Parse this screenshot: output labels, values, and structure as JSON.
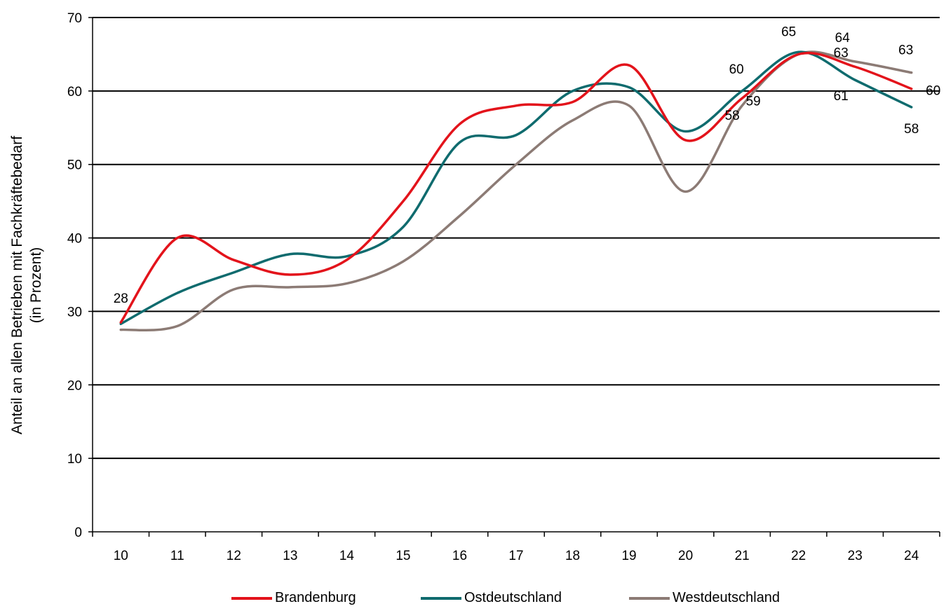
{
  "chart_data": {
    "type": "line",
    "title": "",
    "xlabel": "",
    "ylabel": "Anteil an allen Betrieben mit Fachkräftebedarf",
    "ylabel_line2": "(in Prozent)",
    "categories": [
      "10",
      "11",
      "12",
      "13",
      "14",
      "15",
      "16",
      "17",
      "18",
      "19",
      "20",
      "21",
      "22",
      "23",
      "24"
    ],
    "ylim": [
      0,
      70
    ],
    "yticks": [
      "0",
      "10",
      "20",
      "30",
      "40",
      "50",
      "60",
      "70"
    ],
    "grid": true,
    "legend_position": "bottom",
    "series": [
      {
        "name": "Brandenburg",
        "color": "#e3131b",
        "values": [
          28.5,
          40,
          37,
          35,
          37,
          45,
          55.5,
          58,
          58.5,
          63.5,
          53.3,
          59,
          65,
          63.3,
          60.3
        ]
      },
      {
        "name": "Ostdeutschland",
        "color": "#0f6b6e",
        "values": [
          28.3,
          32.5,
          35.3,
          37.8,
          37.5,
          41.5,
          53,
          54,
          60,
          60.5,
          54.5,
          60,
          65.3,
          61.5,
          57.8
        ]
      },
      {
        "name": "Westdeutschland",
        "color": "#8c7b75",
        "values": [
          27.5,
          28,
          33,
          33.3,
          33.8,
          36.8,
          43,
          50,
          56,
          58,
          46.3,
          58,
          65,
          64,
          62.5
        ]
      }
    ],
    "data_labels": [
      {
        "text": "28",
        "series": 0,
        "index": 0
      },
      {
        "text": "60",
        "series": 1,
        "index": 11
      },
      {
        "text": "59",
        "series": 0,
        "index": 11
      },
      {
        "text": "58",
        "series": 2,
        "index": 11
      },
      {
        "text": "65",
        "series": 1,
        "index": 12
      },
      {
        "text": "64",
        "series": 2,
        "index": 13
      },
      {
        "text": "63",
        "series": 0,
        "index": 13
      },
      {
        "text": "61",
        "series": 1,
        "index": 13
      },
      {
        "text": "63",
        "series": 2,
        "index": 14
      },
      {
        "text": "60",
        "series": 0,
        "index": 14
      },
      {
        "text": "58",
        "series": 1,
        "index": 14
      }
    ]
  }
}
